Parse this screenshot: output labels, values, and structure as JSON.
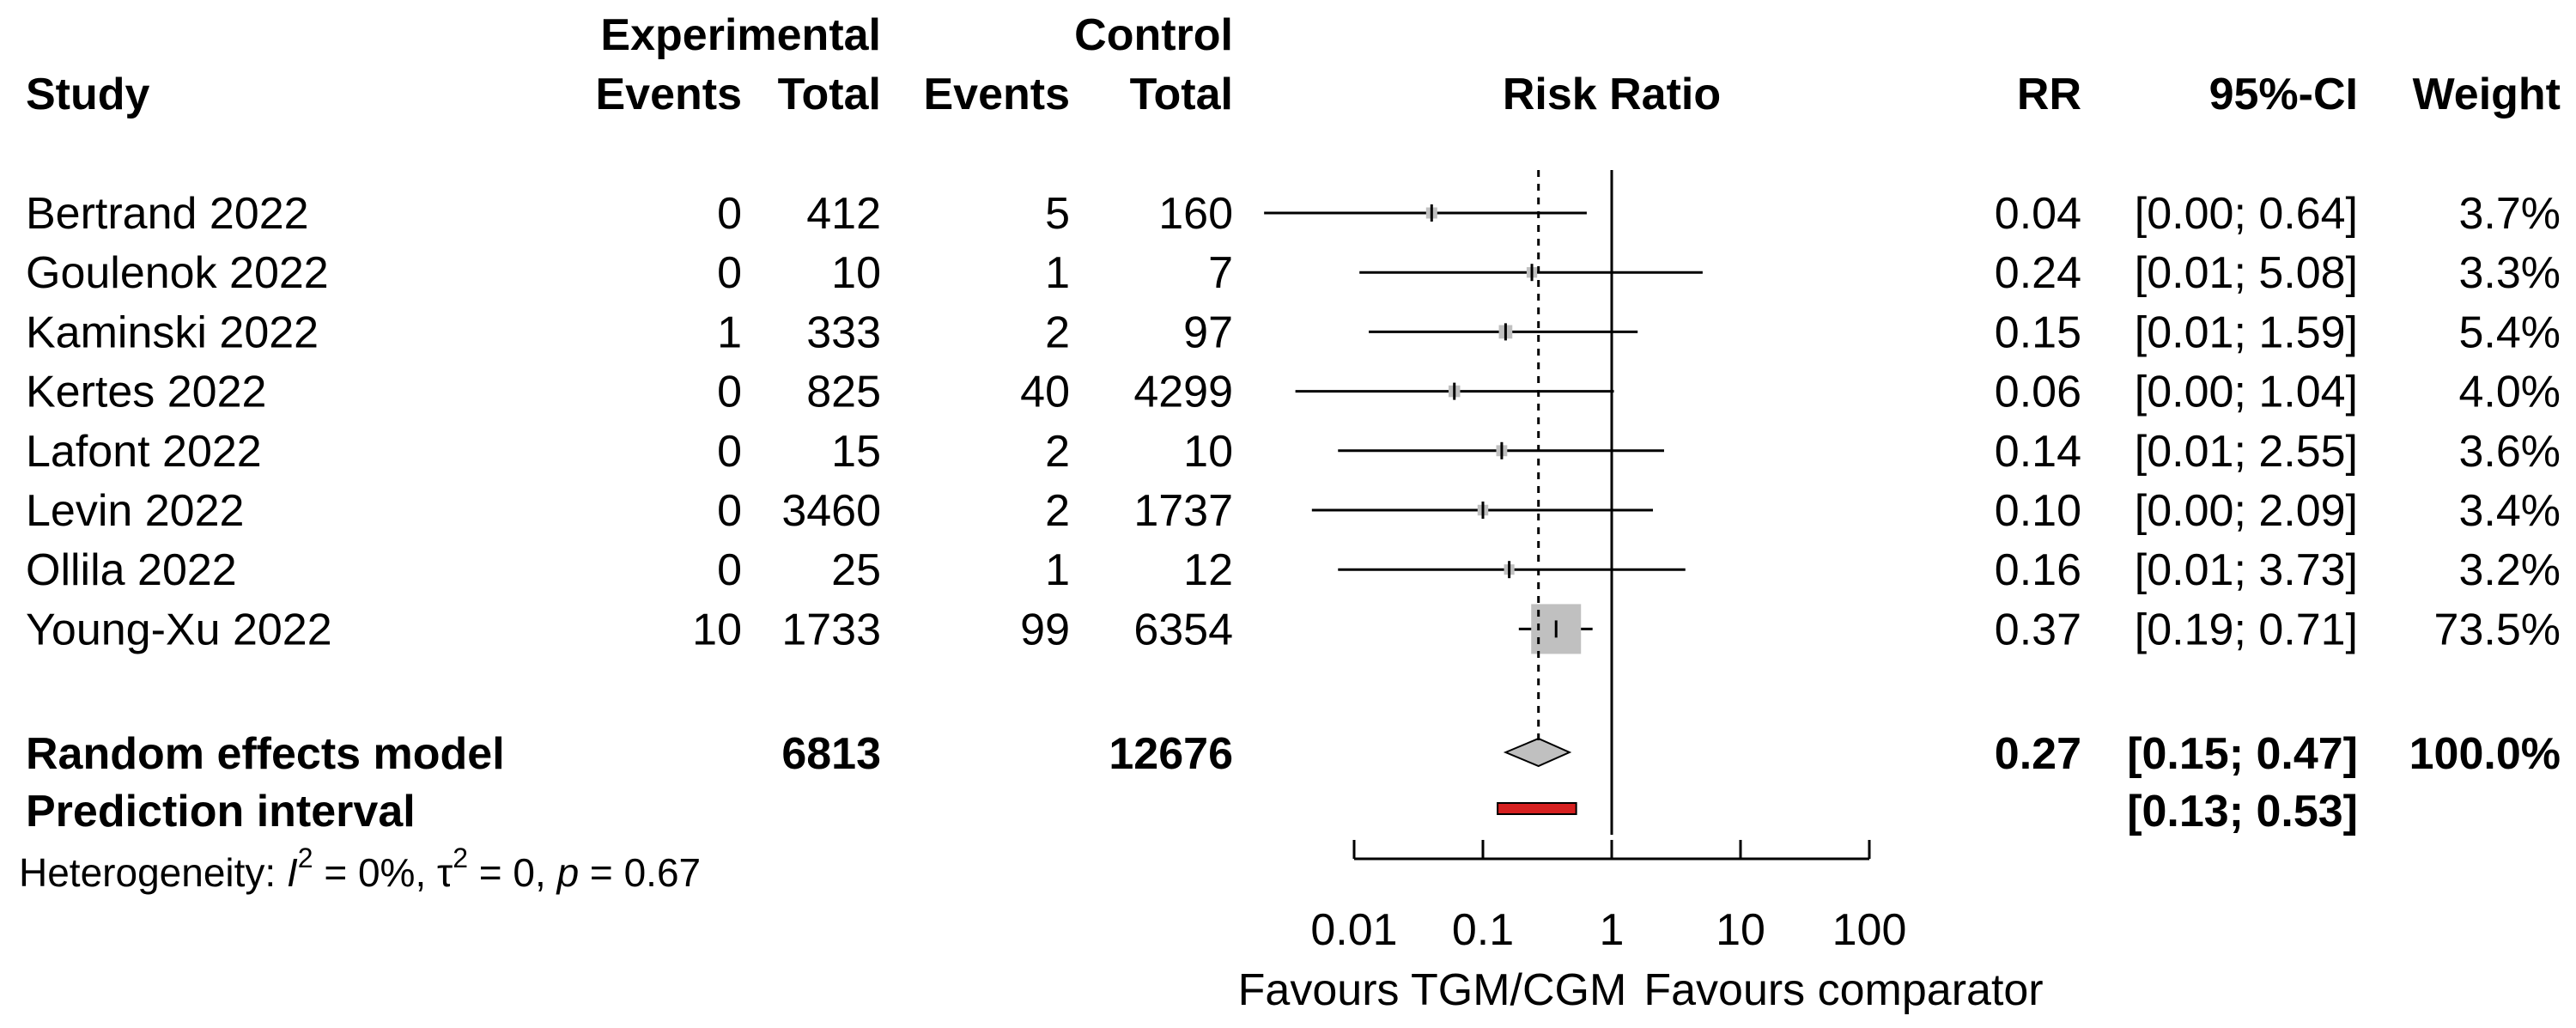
{
  "chart_data": {
    "type": "forest",
    "title": "",
    "headers": {
      "study": "Study",
      "experimental_group": "Experimental",
      "experimental_events": "Events",
      "experimental_total": "Total",
      "control_group": "Control",
      "control_events": "Events",
      "control_total": "Total",
      "plot_title": "Risk Ratio",
      "rr": "RR",
      "ci": "95%-CI",
      "weight": "Weight"
    },
    "studies": [
      {
        "name": "Bertrand 2022",
        "exp_events": "0",
        "exp_total": "412",
        "ctrl_events": "5",
        "ctrl_total": "160",
        "rr": 0.04,
        "lower": 0.002,
        "upper": 0.64,
        "rr_text": "0.04",
        "ci_text": "[0.00; 0.64]",
        "weight_text": "3.7%",
        "weight": 3.7
      },
      {
        "name": "Goulenok 2022",
        "exp_events": "0",
        "exp_total": "10",
        "ctrl_events": "1",
        "ctrl_total": "7",
        "rr": 0.24,
        "lower": 0.011,
        "upper": 5.08,
        "rr_text": "0.24",
        "ci_text": "[0.01; 5.08]",
        "weight_text": "3.3%",
        "weight": 3.3
      },
      {
        "name": "Kaminski 2022",
        "exp_events": "1",
        "exp_total": "333",
        "ctrl_events": "2",
        "ctrl_total": "97",
        "rr": 0.15,
        "lower": 0.013,
        "upper": 1.59,
        "rr_text": "0.15",
        "ci_text": "[0.01; 1.59]",
        "weight_text": "5.4%",
        "weight": 5.4
      },
      {
        "name": "Kertes 2022",
        "exp_events": "0",
        "exp_total": "825",
        "ctrl_events": "40",
        "ctrl_total": "4299",
        "rr": 0.06,
        "lower": 0.0035,
        "upper": 1.04,
        "rr_text": "0.06",
        "ci_text": "[0.00; 1.04]",
        "weight_text": "4.0%",
        "weight": 4.0
      },
      {
        "name": "Lafont 2022",
        "exp_events": "0",
        "exp_total": "15",
        "ctrl_events": "2",
        "ctrl_total": "10",
        "rr": 0.14,
        "lower": 0.0075,
        "upper": 2.55,
        "rr_text": "0.14",
        "ci_text": "[0.01; 2.55]",
        "weight_text": "3.6%",
        "weight": 3.6
      },
      {
        "name": "Levin 2022",
        "exp_events": "0",
        "exp_total": "3460",
        "ctrl_events": "2",
        "ctrl_total": "1737",
        "rr": 0.1,
        "lower": 0.0047,
        "upper": 2.09,
        "rr_text": "0.10",
        "ci_text": "[0.00; 2.09]",
        "weight_text": "3.4%",
        "weight": 3.4
      },
      {
        "name": "Ollila 2022",
        "exp_events": "0",
        "exp_total": "25",
        "ctrl_events": "1",
        "ctrl_total": "12",
        "rr": 0.16,
        "lower": 0.0075,
        "upper": 3.73,
        "rr_text": "0.16",
        "ci_text": "[0.01; 3.73]",
        "weight_text": "3.2%",
        "weight": 3.2
      },
      {
        "name": "Young-Xu 2022",
        "exp_events": "10",
        "exp_total": "1733",
        "ctrl_events": "99",
        "ctrl_total": "6354",
        "rr": 0.37,
        "lower": 0.19,
        "upper": 0.71,
        "rr_text": "0.37",
        "ci_text": "[0.19; 0.71]",
        "weight_text": "73.5%",
        "weight": 73.5
      }
    ],
    "pooled": {
      "label": "Random effects model",
      "exp_total": "6813",
      "ctrl_total": "12676",
      "rr": 0.27,
      "lower": 0.15,
      "upper": 0.47,
      "rr_text": "0.27",
      "ci_text": "[0.15; 0.47]",
      "weight_text": "100.0%"
    },
    "prediction": {
      "label": "Prediction interval",
      "lower": 0.13,
      "upper": 0.53,
      "ci_text": "[0.13; 0.53]"
    },
    "heterogeneity": {
      "prefix": "Heterogeneity: ",
      "i2_symbol": "I",
      "i2_value": " = 0%, ",
      "tau_symbol": "τ",
      "tau_value": " = 0, ",
      "p_symbol": "p",
      "p_value": " = 0.67",
      "superscript": "2"
    },
    "x_axis": {
      "scale": "log",
      "ticks": [
        0.01,
        0.1,
        1,
        10,
        100
      ],
      "tick_labels": [
        "0.01",
        "0.1",
        "1",
        "10",
        "100"
      ],
      "reference_line": 1
    },
    "favours_left": "Favours TGM/CGM",
    "favours_right": "Favours comparator",
    "colors": {
      "square": "#c0c0c0",
      "diamond": "#c0c0c0",
      "prediction": "#d62020",
      "lines": "#000000"
    }
  }
}
